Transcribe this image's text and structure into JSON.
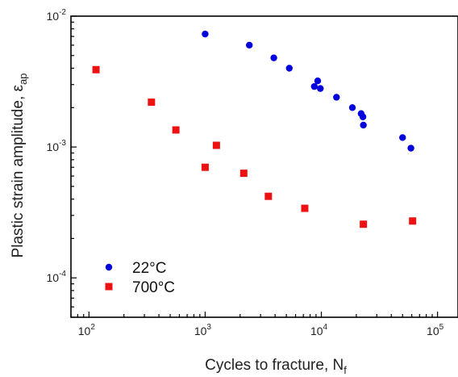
{
  "chart_data": {
    "type": "scatter",
    "title": "",
    "xlabel": "Cycles to fracture, N",
    "xlabel_subscript": "f",
    "ylabel": "Plastic strain amplitude, ε",
    "ylabel_subscript": "ap",
    "x_scale": "log",
    "y_scale": "log",
    "xlim": [
      70,
      150000
    ],
    "ylim": [
      5e-05,
      0.01
    ],
    "x_ticks": [
      {
        "base": "10",
        "exp": "2",
        "value": 100
      },
      {
        "base": "10",
        "exp": "3",
        "value": 1000
      },
      {
        "base": "10",
        "exp": "4",
        "value": 10000
      },
      {
        "base": "10",
        "exp": "5",
        "value": 100000
      }
    ],
    "y_ticks": [
      {
        "base": "10",
        "exp": "-4",
        "value": 0.0001
      },
      {
        "base": "10",
        "exp": "-3",
        "value": 0.001
      },
      {
        "base": "10",
        "exp": "-2",
        "value": 0.01
      }
    ],
    "grid": false,
    "legend": "bottom-left",
    "series": [
      {
        "name": "22°C",
        "marker": "circle",
        "color": "#0000dd",
        "points": [
          {
            "x": 1000,
            "y": 0.0073
          },
          {
            "x": 2400,
            "y": 0.006
          },
          {
            "x": 3900,
            "y": 0.0048
          },
          {
            "x": 5300,
            "y": 0.004
          },
          {
            "x": 8700,
            "y": 0.0029
          },
          {
            "x": 9300,
            "y": 0.0032
          },
          {
            "x": 9800,
            "y": 0.0028
          },
          {
            "x": 13500,
            "y": 0.0024
          },
          {
            "x": 18500,
            "y": 0.002
          },
          {
            "x": 22000,
            "y": 0.0018
          },
          {
            "x": 22800,
            "y": 0.0017
          },
          {
            "x": 23000,
            "y": 0.00147
          },
          {
            "x": 50000,
            "y": 0.00118
          },
          {
            "x": 59000,
            "y": 0.00098
          }
        ]
      },
      {
        "name": "700°C",
        "marker": "square",
        "color": "#ee1111",
        "points": [
          {
            "x": 115,
            "y": 0.0039
          },
          {
            "x": 345,
            "y": 0.0022
          },
          {
            "x": 560,
            "y": 0.00135
          },
          {
            "x": 1000,
            "y": 0.0007
          },
          {
            "x": 1250,
            "y": 0.00103
          },
          {
            "x": 2150,
            "y": 0.00063
          },
          {
            "x": 3500,
            "y": 0.00042
          },
          {
            "x": 7200,
            "y": 0.00034
          },
          {
            "x": 23000,
            "y": 0.000257
          },
          {
            "x": 61000,
            "y": 0.000272
          }
        ]
      }
    ]
  }
}
